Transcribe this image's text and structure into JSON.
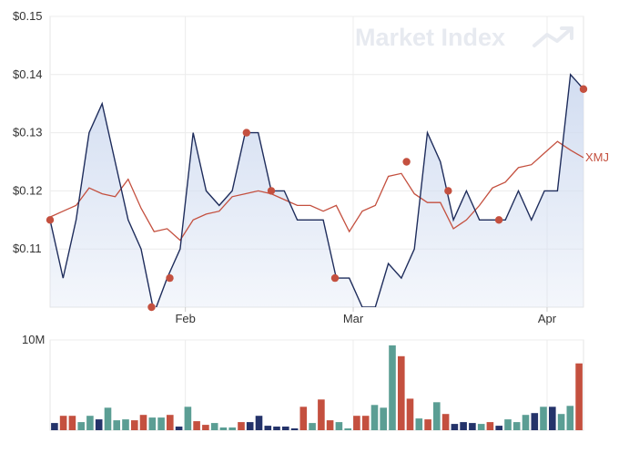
{
  "chart_data": [
    {
      "type": "line",
      "watermark": "Market Index",
      "y_tick_labels": [
        "$0.15",
        "$0.14",
        "$0.13",
        "$0.12",
        "$0.11"
      ],
      "y_ticks": [
        0.15,
        0.14,
        0.13,
        0.12,
        0.11
      ],
      "ylim": [
        0.1,
        0.15
      ],
      "x_tick_labels": [
        "Feb",
        "Mar",
        "Apr"
      ],
      "x_ticks": [
        10.4,
        23.3,
        38.2
      ],
      "xlim": [
        0,
        41
      ],
      "grid": true,
      "x": [
        0,
        1,
        2,
        3,
        4,
        5,
        6,
        7,
        8,
        9,
        10,
        11,
        12,
        13,
        14,
        15,
        16,
        17,
        18,
        19,
        20,
        21,
        22,
        23,
        24,
        25,
        26,
        27,
        28,
        29,
        30,
        31,
        32,
        33,
        34,
        35,
        36,
        37,
        38,
        39,
        40,
        41
      ],
      "series": [
        {
          "name": "",
          "color": "#1f2d5c",
          "fill": "#d2ddf1",
          "values": [
            0.115,
            0.105,
            0.115,
            0.13,
            0.135,
            0.125,
            0.115,
            0.11,
            0.099,
            0.105,
            0.11,
            0.13,
            0.12,
            0.1175,
            0.12,
            0.13,
            0.13,
            0.12,
            0.12,
            0.115,
            0.115,
            0.115,
            0.105,
            0.105,
            0.1,
            0.1,
            0.1075,
            0.105,
            0.11,
            0.13,
            0.125,
            0.115,
            0.12,
            0.115,
            0.115,
            0.115,
            0.12,
            0.115,
            0.12,
            0.12,
            0.14,
            0.1375
          ]
        },
        {
          "name": "XMJ",
          "color": "#c4503f",
          "values": [
            0.1155,
            0.1165,
            0.1175,
            0.1205,
            0.1195,
            0.119,
            0.122,
            0.117,
            0.113,
            0.1135,
            0.1115,
            0.115,
            0.116,
            0.1165,
            0.119,
            0.1195,
            0.12,
            0.1195,
            0.1185,
            0.1175,
            0.1175,
            0.1165,
            0.1175,
            0.113,
            0.1165,
            0.1175,
            0.1225,
            0.123,
            0.1195,
            0.118,
            0.118,
            0.1135,
            0.115,
            0.1175,
            0.1205,
            0.1215,
            0.124,
            0.1245,
            0.1265,
            0.1285,
            0.127,
            0.1257
          ]
        }
      ],
      "markers": [
        {
          "x": 0,
          "y": 0.115
        },
        {
          "x": 7.8,
          "y": 0.1
        },
        {
          "x": 9.2,
          "y": 0.105
        },
        {
          "x": 15.1,
          "y": 0.13
        },
        {
          "x": 17.0,
          "y": 0.12
        },
        {
          "x": 21.9,
          "y": 0.105
        },
        {
          "x": 27.4,
          "y": 0.125
        },
        {
          "x": 30.6,
          "y": 0.12
        },
        {
          "x": 34.5,
          "y": 0.115
        },
        {
          "x": 41,
          "y": 0.1375
        }
      ],
      "marker_color": "#c4503f"
    },
    {
      "type": "bar",
      "y_tick_labels": [
        "10M"
      ],
      "y_ticks": [
        10000000
      ],
      "ylim": [
        0,
        10000000
      ],
      "colors": {
        "up": "#5b9e94",
        "down": "#c4503f",
        "flat": "#24336a"
      },
      "bars": [
        {
          "v": 800000,
          "c": "flat"
        },
        {
          "v": 1600000,
          "c": "down"
        },
        {
          "v": 1600000,
          "c": "down"
        },
        {
          "v": 900000,
          "c": "up"
        },
        {
          "v": 1600000,
          "c": "up"
        },
        {
          "v": 1200000,
          "c": "flat"
        },
        {
          "v": 2500000,
          "c": "up"
        },
        {
          "v": 1100000,
          "c": "up"
        },
        {
          "v": 1200000,
          "c": "up"
        },
        {
          "v": 1100000,
          "c": "down"
        },
        {
          "v": 1700000,
          "c": "down"
        },
        {
          "v": 1400000,
          "c": "up"
        },
        {
          "v": 1400000,
          "c": "up"
        },
        {
          "v": 1700000,
          "c": "down"
        },
        {
          "v": 400000,
          "c": "flat"
        },
        {
          "v": 2600000,
          "c": "up"
        },
        {
          "v": 1000000,
          "c": "down"
        },
        {
          "v": 600000,
          "c": "down"
        },
        {
          "v": 800000,
          "c": "up"
        },
        {
          "v": 300000,
          "c": "up"
        },
        {
          "v": 300000,
          "c": "up"
        },
        {
          "v": 900000,
          "c": "down"
        },
        {
          "v": 900000,
          "c": "flat"
        },
        {
          "v": 1600000,
          "c": "flat"
        },
        {
          "v": 500000,
          "c": "flat"
        },
        {
          "v": 400000,
          "c": "flat"
        },
        {
          "v": 400000,
          "c": "flat"
        },
        {
          "v": 200000,
          "c": "flat"
        },
        {
          "v": 2600000,
          "c": "down"
        },
        {
          "v": 800000,
          "c": "up"
        },
        {
          "v": 3400000,
          "c": "down"
        },
        {
          "v": 1100000,
          "c": "down"
        },
        {
          "v": 900000,
          "c": "up"
        },
        {
          "v": 200000,
          "c": "up"
        },
        {
          "v": 1600000,
          "c": "down"
        },
        {
          "v": 1600000,
          "c": "down"
        },
        {
          "v": 2800000,
          "c": "up"
        },
        {
          "v": 2500000,
          "c": "up"
        },
        {
          "v": 9400000,
          "c": "up"
        },
        {
          "v": 8200000,
          "c": "down"
        },
        {
          "v": 3500000,
          "c": "down"
        },
        {
          "v": 1300000,
          "c": "up"
        },
        {
          "v": 1200000,
          "c": "down"
        },
        {
          "v": 3100000,
          "c": "up"
        },
        {
          "v": 1800000,
          "c": "down"
        },
        {
          "v": 700000,
          "c": "flat"
        },
        {
          "v": 900000,
          "c": "flat"
        },
        {
          "v": 800000,
          "c": "flat"
        },
        {
          "v": 700000,
          "c": "up"
        },
        {
          "v": 900000,
          "c": "down"
        },
        {
          "v": 500000,
          "c": "flat"
        },
        {
          "v": 1200000,
          "c": "up"
        },
        {
          "v": 900000,
          "c": "up"
        },
        {
          "v": 1700000,
          "c": "up"
        },
        {
          "v": 1900000,
          "c": "flat"
        },
        {
          "v": 2600000,
          "c": "up"
        },
        {
          "v": 2600000,
          "c": "flat"
        },
        {
          "v": 1800000,
          "c": "up"
        },
        {
          "v": 2700000,
          "c": "up"
        },
        {
          "v": 7400000,
          "c": "down"
        }
      ]
    }
  ]
}
